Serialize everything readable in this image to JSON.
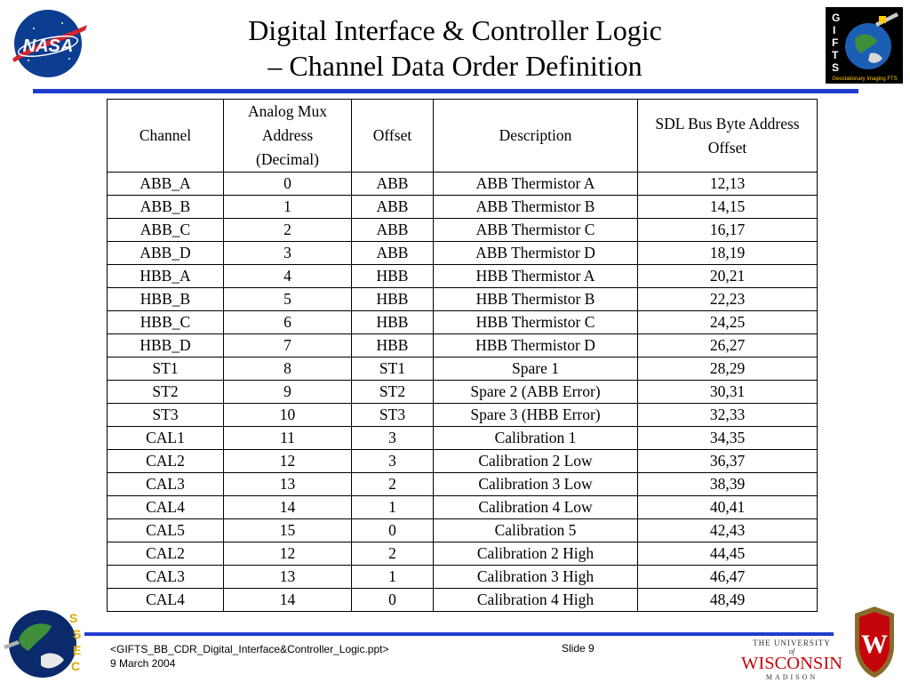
{
  "slide": {
    "title_line1": "Digital Interface & Controller Logic",
    "title_line2": "– Channel Data Order Definition"
  },
  "logos": {
    "nasa_text": "NASA",
    "gifts_letters": [
      "G",
      "I",
      "F",
      "T",
      "S"
    ],
    "gifts_caption": "Geostationary Imaging FTS",
    "ssec_letters": [
      "S",
      "S",
      "E",
      "C"
    ],
    "uw_line1": "THE UNIVERSITY",
    "uw_of": "of",
    "uw_name": "WISCONSIN",
    "uw_line3": "MADISON",
    "crest_letter": "W"
  },
  "colors": {
    "accent_rule": "#1f3ccf",
    "nasa_red": "#d22630",
    "uw_red": "#c5050c"
  },
  "table": {
    "headers": [
      [
        "Channel"
      ],
      [
        "Analog Mux",
        "Address",
        "(Decimal)"
      ],
      [
        "Offset"
      ],
      [
        "Description"
      ],
      [
        "SDL Bus Byte Address",
        "Offset"
      ]
    ],
    "rows": [
      [
        "ABB_A",
        "0",
        "ABB",
        "ABB Thermistor A",
        "12,13"
      ],
      [
        "ABB_B",
        "1",
        "ABB",
        "ABB Thermistor B",
        "14,15"
      ],
      [
        "ABB_C",
        "2",
        "ABB",
        "ABB Thermistor C",
        "16,17"
      ],
      [
        "ABB_D",
        "3",
        "ABB",
        "ABB Thermistor D",
        "18,19"
      ],
      [
        "HBB_A",
        "4",
        "HBB",
        "HBB Thermistor A",
        "20,21"
      ],
      [
        "HBB_B",
        "5",
        "HBB",
        "HBB Thermistor B",
        "22,23"
      ],
      [
        "HBB_C",
        "6",
        "HBB",
        "HBB Thermistor C",
        "24,25"
      ],
      [
        "HBB_D",
        "7",
        "HBB",
        "HBB Thermistor D",
        "26,27"
      ],
      [
        "ST1",
        "8",
        "ST1",
        "Spare 1",
        "28,29"
      ],
      [
        "ST2",
        "9",
        "ST2",
        "Spare 2 (ABB Error)",
        "30,31"
      ],
      [
        "ST3",
        "10",
        "ST3",
        "Spare 3 (HBB Error)",
        "32,33"
      ],
      [
        "CAL1",
        "11",
        "3",
        "Calibration 1",
        "34,35"
      ],
      [
        "CAL2",
        "12",
        "3",
        "Calibration 2 Low",
        "36,37"
      ],
      [
        "CAL3",
        "13",
        "2",
        "Calibration 3 Low",
        "38,39"
      ],
      [
        "CAL4",
        "14",
        "1",
        "Calibration 4 Low",
        "40,41"
      ],
      [
        "CAL5",
        "15",
        "0",
        "Calibration 5",
        "42,43"
      ],
      [
        "CAL2",
        "12",
        "2",
        "Calibration 2 High",
        "44,45"
      ],
      [
        "CAL3",
        "13",
        "1",
        "Calibration 3 High",
        "46,47"
      ],
      [
        "CAL4",
        "14",
        "0",
        "Calibration 4 High",
        "48,49"
      ]
    ]
  },
  "footer": {
    "filename": "<GIFTS_BB_CDR_Digital_Interface&Controller_Logic.ppt>",
    "date": "9 March 2004",
    "slide_number": "Slide 9"
  }
}
